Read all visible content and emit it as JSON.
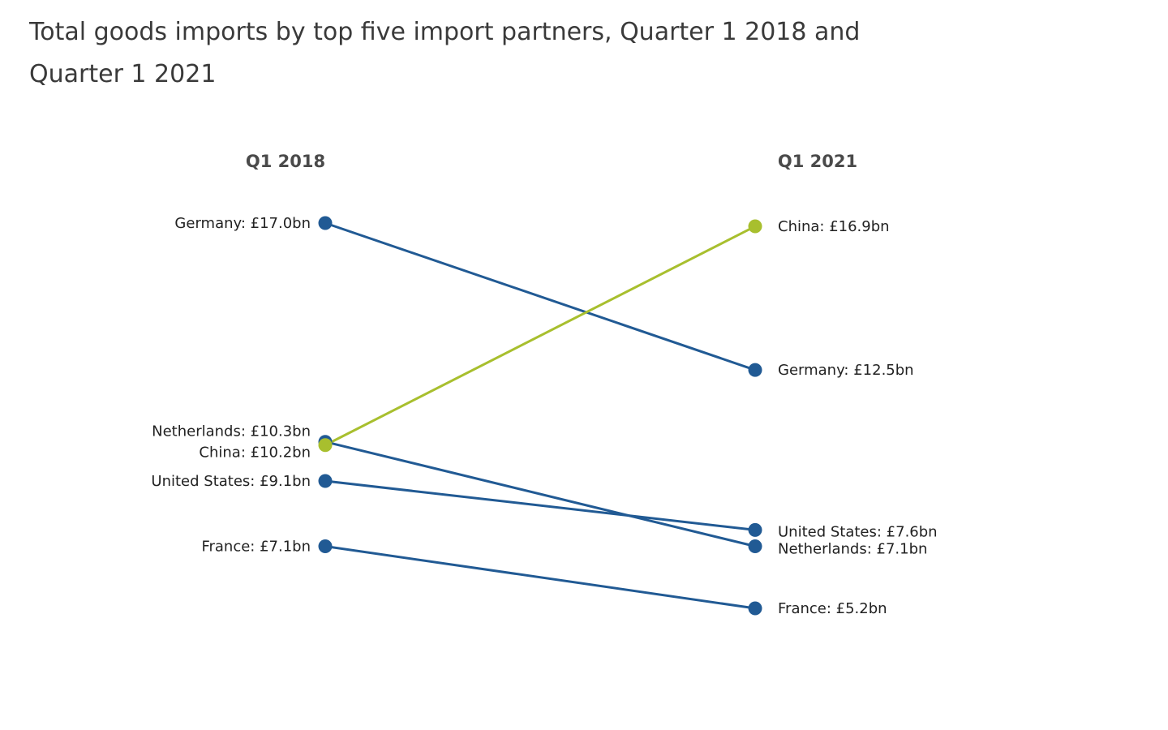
{
  "chart_data": {
    "type": "slope",
    "title": "Total goods imports by top five import partners, Quarter 1 2018 and Quarter 1 2021",
    "periods": [
      "Q1 2018",
      "Q1 2021"
    ],
    "unit": "£bn",
    "highlight_color": "#a8bf2e",
    "base_color": "#215a94",
    "series": [
      {
        "name": "Germany",
        "values": [
          17.0,
          12.5
        ],
        "labels": [
          "Germany: £17.0bn",
          "Germany: £12.5bn"
        ],
        "highlight": false
      },
      {
        "name": "Netherlands",
        "values": [
          10.3,
          7.1
        ],
        "labels": [
          "Netherlands: £10.3bn",
          "Netherlands: £7.1bn"
        ],
        "highlight": false
      },
      {
        "name": "United States",
        "values": [
          9.1,
          7.6
        ],
        "labels": [
          "United States: £9.1bn",
          "United States: £7.6bn"
        ],
        "highlight": false
      },
      {
        "name": "France",
        "values": [
          7.1,
          5.2
        ],
        "labels": [
          "France: £7.1bn",
          "France: £5.2bn"
        ],
        "highlight": false
      },
      {
        "name": "China",
        "values": [
          10.2,
          16.9
        ],
        "labels": [
          "China: £10.2bn",
          "China: £16.9bn"
        ],
        "highlight": true
      }
    ]
  }
}
